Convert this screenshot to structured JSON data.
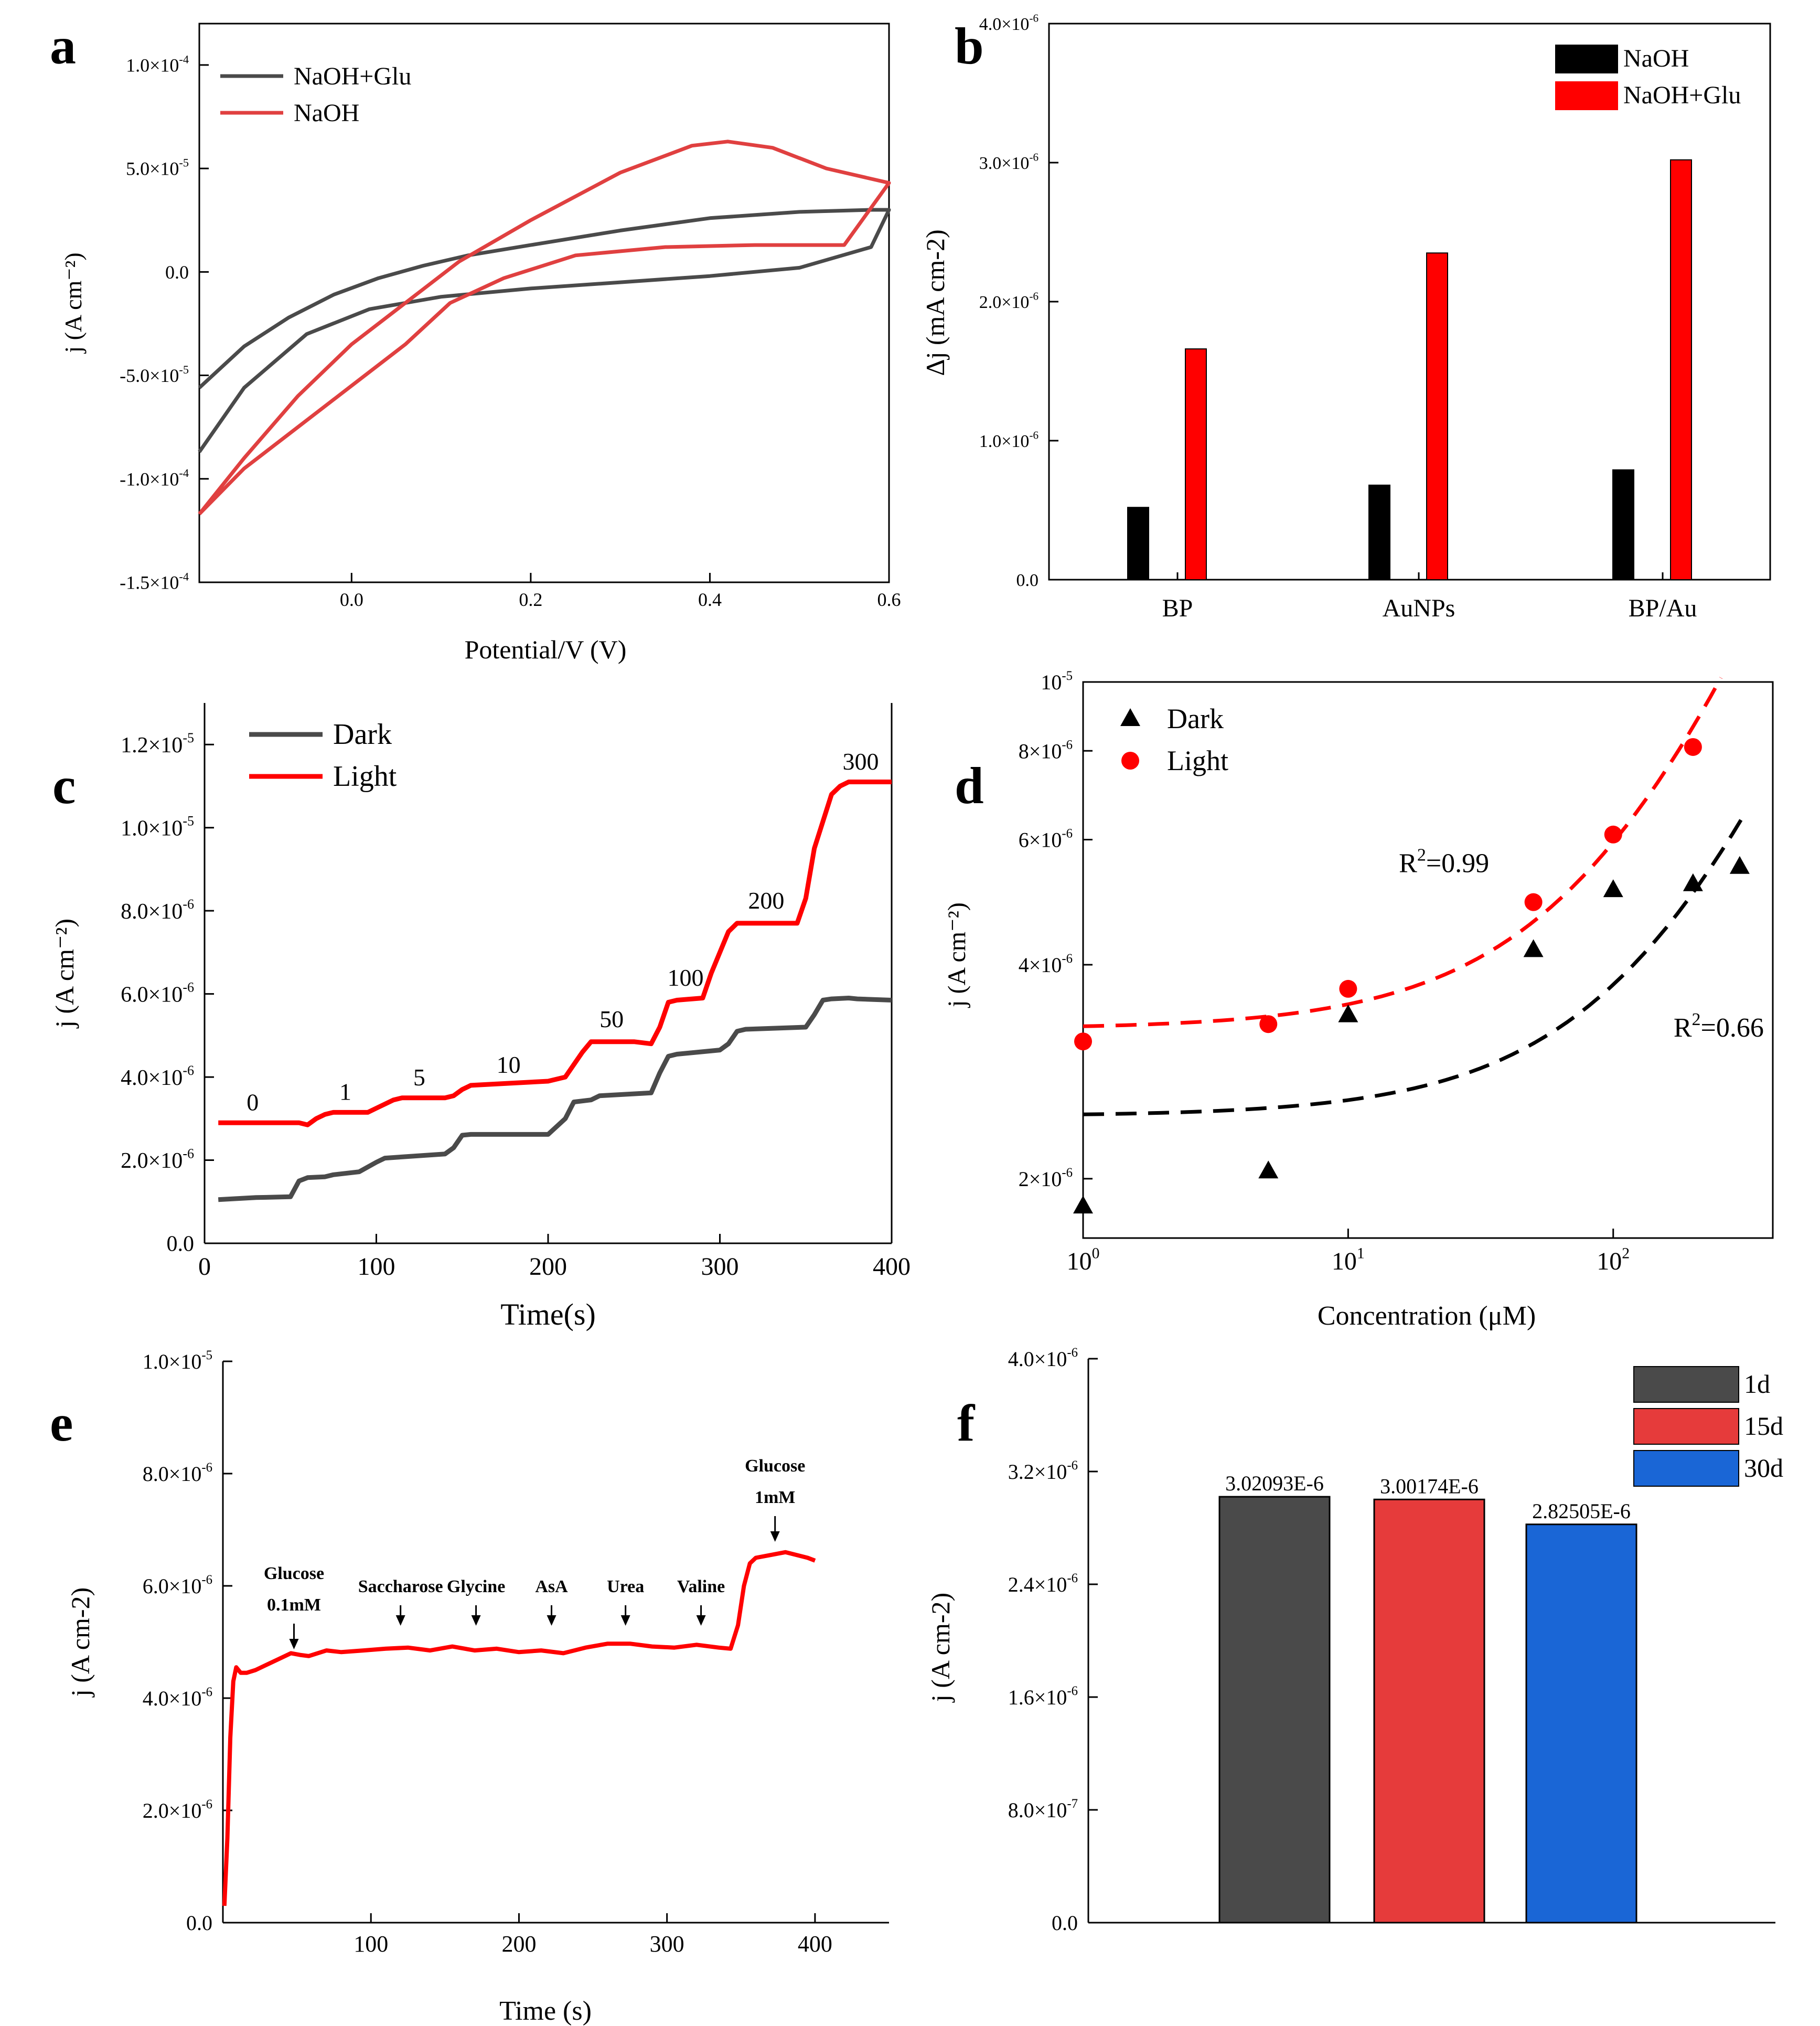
{
  "colors": {
    "black": "#000000",
    "gray": "#4a4a4a",
    "red": "#ff0000",
    "red_bar": "#e63b3b",
    "blue_bar": "#1a66d6"
  },
  "panels": {
    "a": "a",
    "b": "b",
    "c": "c",
    "d": "d",
    "e": "e",
    "f": "f"
  },
  "chart_data": [
    {
      "id": "a",
      "type": "line",
      "xlabel": "Potential/V (V)",
      "ylabel": "j (A cm⁻²)",
      "xlim": [
        -0.17,
        0.6
      ],
      "ylim": [
        -0.00015,
        0.00012
      ],
      "xticks": [
        0.0,
        0.2,
        0.4,
        0.6
      ],
      "xtick_labels": [
        "0.0",
        "0.2",
        "0.4",
        "0.6"
      ],
      "yticks": [
        0.0001,
        5e-05,
        0.0,
        -5e-05,
        -0.0001,
        -0.00015
      ],
      "ytick_labels": [
        [
          "1.0×10",
          "-4"
        ],
        [
          "5.0×10",
          "-5"
        ],
        [
          "0.0",
          ""
        ],
        [
          "-5.0×10",
          "-5"
        ],
        [
          "-1.0×10",
          "-4"
        ],
        [
          "-1.5×10",
          "-4"
        ]
      ],
      "legend_position": "top-left",
      "series": [
        {
          "name": "NaOH+Glu",
          "color": "#4a4a4a",
          "x": [
            -0.17,
            -0.12,
            -0.07,
            -0.02,
            0.03,
            0.08,
            0.13,
            0.2,
            0.3,
            0.4,
            0.5,
            0.58,
            0.6,
            0.58,
            0.5,
            0.4,
            0.3,
            0.2,
            0.1,
            0.02,
            -0.05,
            -0.12,
            -0.17
          ],
          "y": [
            -5.6e-05,
            -3.6e-05,
            -2.2e-05,
            -1.1e-05,
            -3e-06,
            3e-06,
            8e-06,
            1.3e-05,
            2e-05,
            2.6e-05,
            2.9e-05,
            3e-05,
            3e-05,
            1.2e-05,
            2e-06,
            -2e-06,
            -5e-06,
            -8e-06,
            -1.2e-05,
            -1.8e-05,
            -3e-05,
            -5.6e-05,
            -8.7e-05
          ]
        },
        {
          "name": "NaOH",
          "color": "#e04040",
          "x": [
            -0.17,
            -0.12,
            -0.06,
            0.0,
            0.06,
            0.12,
            0.2,
            0.3,
            0.38,
            0.42,
            0.47,
            0.53,
            0.6,
            0.55,
            0.45,
            0.35,
            0.25,
            0.17,
            0.11,
            0.06,
            0.0,
            -0.06,
            -0.12,
            -0.17
          ],
          "y": [
            -0.000117,
            -9e-05,
            -6e-05,
            -3.5e-05,
            -1.5e-05,
            5e-06,
            2.5e-05,
            4.8e-05,
            6.1e-05,
            6.3e-05,
            6e-05,
            5e-05,
            4.3e-05,
            1.3e-05,
            1.3e-05,
            1.2e-05,
            8e-06,
            -3e-06,
            -1.5e-05,
            -3.5e-05,
            -5.5e-05,
            -7.5e-05,
            -9.5e-05,
            -0.000117
          ]
        }
      ]
    },
    {
      "id": "b",
      "type": "bar",
      "ylabel": "Δj (mA cm-2)",
      "ylim": [
        0,
        4e-06
      ],
      "categories": [
        "BP",
        "AuNPs",
        "BP/Au"
      ],
      "yticks": [
        0,
        1e-06,
        2e-06,
        3e-06,
        4e-06
      ],
      "ytick_labels": [
        [
          "0.0",
          ""
        ],
        [
          "1.0×10",
          "-6"
        ],
        [
          "2.0×10",
          "-6"
        ],
        [
          "3.0×10",
          "-6"
        ],
        [
          "4.0×10",
          "-6"
        ]
      ],
      "legend_position": "top-right",
      "series": [
        {
          "name": "NaOH",
          "color": "#000000",
          "values": [
            5.2e-07,
            6.8e-07,
            7.9e-07
          ]
        },
        {
          "name": "NaOH+Glu",
          "color": "#ff0000",
          "values": [
            1.66e-06,
            2.35e-06,
            3.02e-06
          ]
        }
      ]
    },
    {
      "id": "c",
      "type": "line",
      "xlabel": "Time(s)",
      "ylabel": "j (A cm⁻²)",
      "xlim": [
        0,
        400
      ],
      "ylim": [
        0,
        1.3e-05
      ],
      "xticks": [
        0,
        100,
        200,
        300,
        400
      ],
      "xtick_labels": [
        "0",
        "100",
        "200",
        "300",
        "400"
      ],
      "yticks": [
        0,
        2e-06,
        4e-06,
        6e-06,
        8e-06,
        1e-05,
        1.2e-05
      ],
      "ytick_labels": [
        [
          "0.0",
          ""
        ],
        [
          "2.0×10",
          "-6"
        ],
        [
          "4.0×10",
          "-6"
        ],
        [
          "6.0×10",
          "-6"
        ],
        [
          "8.0×10",
          "-6"
        ],
        [
          "1.0×10",
          "-5"
        ],
        [
          "1.2×10",
          "-5"
        ]
      ],
      "legend_position": "top-left",
      "series": [
        {
          "name": "Dark",
          "color": "#4a4a4a",
          "x": [
            8,
            30,
            50,
            55,
            60,
            70,
            75,
            90,
            100,
            105,
            140,
            145,
            150,
            155,
            200,
            210,
            215,
            225,
            230,
            260,
            265,
            270,
            275,
            300,
            305,
            310,
            315,
            350,
            355,
            360,
            365,
            375,
            380,
            400
          ],
          "y": [
            1.05e-06,
            1.1e-06,
            1.12e-06,
            1.5e-06,
            1.58e-06,
            1.6e-06,
            1.65e-06,
            1.72e-06,
            1.95e-06,
            2.05e-06,
            2.15e-06,
            2.3e-06,
            2.6e-06,
            2.62e-06,
            2.62e-06,
            3e-06,
            3.4e-06,
            3.45e-06,
            3.55e-06,
            3.62e-06,
            4.1e-06,
            4.5e-06,
            4.55e-06,
            4.65e-06,
            4.8e-06,
            5.1e-06,
            5.15e-06,
            5.2e-06,
            5.5e-06,
            5.85e-06,
            5.88e-06,
            5.9e-06,
            5.88e-06,
            5.85e-06
          ]
        },
        {
          "name": "Light",
          "color": "#ff0000",
          "x": [
            8,
            30,
            55,
            60,
            65,
            70,
            75,
            95,
            100,
            110,
            115,
            140,
            145,
            150,
            155,
            200,
            210,
            215,
            220,
            225,
            250,
            260,
            265,
            270,
            275,
            290,
            295,
            305,
            310,
            315,
            345,
            350,
            355,
            365,
            370,
            375,
            400
          ],
          "y": [
            2.9e-06,
            2.9e-06,
            2.9e-06,
            2.85e-06,
            3e-06,
            3.1e-06,
            3.15e-06,
            3.15e-06,
            3.25e-06,
            3.45e-06,
            3.5e-06,
            3.5e-06,
            3.55e-06,
            3.7e-06,
            3.8e-06,
            3.9e-06,
            4e-06,
            4.3e-06,
            4.6e-06,
            4.85e-06,
            4.85e-06,
            4.8e-06,
            5.2e-06,
            5.8e-06,
            5.85e-06,
            5.9e-06,
            6.5e-06,
            7.5e-06,
            7.7e-06,
            7.7e-06,
            7.7e-06,
            8.3e-06,
            9.5e-06,
            1.08e-05,
            1.1e-05,
            1.11e-05,
            1.11e-05
          ]
        }
      ],
      "annotations": [
        {
          "text": "0",
          "x": 28,
          "y": 3.2e-06
        },
        {
          "text": "1",
          "x": 82,
          "y": 3.45e-06
        },
        {
          "text": "5",
          "x": 125,
          "y": 3.8e-06
        },
        {
          "text": "10",
          "x": 177,
          "y": 4.1e-06
        },
        {
          "text": "50",
          "x": 237,
          "y": 5.2e-06
        },
        {
          "text": "100",
          "x": 280,
          "y": 6.2e-06
        },
        {
          "text": "200",
          "x": 327,
          "y": 8.05e-06
        },
        {
          "text": "300",
          "x": 382,
          "y": 1.14e-05
        }
      ]
    },
    {
      "id": "d",
      "type": "scatter",
      "xlabel": "Concentration (μM)",
      "ylabel": "j (A cm⁻²)",
      "xscale": "log",
      "yscale": "log",
      "xlim": [
        1,
        400
      ],
      "ylim": [
        1.65e-06,
        1e-05
      ],
      "xticks": [
        1,
        10,
        100
      ],
      "xtick_labels": [
        [
          "10",
          "0"
        ],
        [
          "10",
          "1"
        ],
        [
          "10",
          "2"
        ]
      ],
      "yticks": [
        2e-06,
        4e-06,
        6e-06,
        8e-06,
        1e-05
      ],
      "ytick_labels": [
        [
          "2×10",
          "-6"
        ],
        [
          "4×10",
          "-6"
        ],
        [
          "6×10",
          "-6"
        ],
        [
          "8×10",
          "-6"
        ],
        [
          "10",
          "-5"
        ]
      ],
      "legend_position": "top-left",
      "series": [
        {
          "name": "Dark",
          "color": "#000000",
          "marker": "triangle",
          "x": [
            1,
            5,
            10,
            50,
            100,
            200,
            300
          ],
          "y": [
            1.83e-06,
            2.05e-06,
            3.4e-06,
            4.2e-06,
            5.1e-06,
            5.2e-06,
            5.5e-06
          ]
        },
        {
          "name": "Light",
          "color": "#ff0000",
          "marker": "circle",
          "x": [
            1,
            5,
            10,
            50,
            100,
            200
          ],
          "y": [
            3.12e-06,
            3.3e-06,
            3.7e-06,
            4.9e-06,
            6.1e-06,
            8.1e-06
          ]
        }
      ],
      "fits": [
        {
          "color": "#000000",
          "a": 2.45e-06,
          "b": 1.3e-08,
          "x_range": [
            1,
            310
          ]
        },
        {
          "color": "#ff0000",
          "a": 3.25e-06,
          "b": 2.7e-08,
          "x_range": [
            1,
            255
          ]
        }
      ],
      "annotations": [
        {
          "text": "R",
          "sup": "2",
          "rest": "=0.99",
          "x": 23,
          "y": 5.4e-06
        },
        {
          "text": "R",
          "sup": "2",
          "rest": "=0.66",
          "x": 250,
          "y": 3.17e-06
        }
      ]
    },
    {
      "id": "e",
      "type": "line",
      "xlabel": "Time (s)",
      "ylabel": "j (A cm-2)",
      "xlim": [
        0,
        450
      ],
      "ylim": [
        0,
        1e-05
      ],
      "xticks": [
        100,
        200,
        300,
        400
      ],
      "xtick_labels": [
        "100",
        "200",
        "300",
        "400"
      ],
      "yticks": [
        0,
        2e-06,
        4e-06,
        6e-06,
        8e-06,
        1e-05
      ],
      "ytick_labels": [
        [
          "0.0",
          ""
        ],
        [
          "2.0×10",
          "-6"
        ],
        [
          "4.0×10",
          "-6"
        ],
        [
          "6.0×10",
          "-6"
        ],
        [
          "8.0×10",
          "-6"
        ],
        [
          "1.0×10",
          "-5"
        ]
      ],
      "series": [
        {
          "name": "",
          "color": "#ff0000",
          "x": [
            1,
            3,
            5,
            7,
            9,
            12,
            16,
            22,
            30,
            38,
            46,
            52,
            58,
            70,
            80,
            95,
            110,
            125,
            140,
            155,
            170,
            185,
            200,
            215,
            230,
            245,
            260,
            275,
            290,
            305,
            320,
            335,
            343,
            348,
            352,
            356,
            360,
            370,
            380,
            395,
            400
          ],
          "y": [
            3e-07,
            1.5e-06,
            3.3e-06,
            4.3e-06,
            4.55e-06,
            4.45e-06,
            4.45e-06,
            4.5e-06,
            4.6e-06,
            4.7e-06,
            4.8e-06,
            4.77e-06,
            4.75e-06,
            4.85e-06,
            4.82e-06,
            4.85e-06,
            4.88e-06,
            4.9e-06,
            4.85e-06,
            4.92e-06,
            4.85e-06,
            4.88e-06,
            4.82e-06,
            4.85e-06,
            4.8e-06,
            4.9e-06,
            4.97e-06,
            4.97e-06,
            4.92e-06,
            4.9e-06,
            4.95e-06,
            4.9e-06,
            4.88e-06,
            5.3e-06,
            6e-06,
            6.4e-06,
            6.5e-06,
            6.55e-06,
            6.6e-06,
            6.5e-06,
            6.45e-06
          ]
        }
      ],
      "annotations": [
        {
          "lines": [
            "Glucose",
            "0.1mM"
          ],
          "x": 48
        },
        {
          "lines": [
            "Saccharose"
          ],
          "x": 120
        },
        {
          "lines": [
            "Glycine"
          ],
          "x": 171
        },
        {
          "lines": [
            "AsA"
          ],
          "x": 222
        },
        {
          "lines": [
            "Urea"
          ],
          "x": 272
        },
        {
          "lines": [
            "Valine"
          ],
          "x": 323
        },
        {
          "lines": [
            "Glucose",
            "1mM"
          ],
          "x": 373
        }
      ]
    },
    {
      "id": "f",
      "type": "bar",
      "ylabel": "j (A cm-2)",
      "ylim": [
        0,
        4e-06
      ],
      "categories": [
        "1d",
        "15d",
        "30d"
      ],
      "values": [
        3.02093e-06,
        3.00174e-06,
        2.82505e-06
      ],
      "value_labels": [
        "3.02093E-6",
        "3.00174E-6",
        "2.82505E-6"
      ],
      "colors": [
        "#4a4a4a",
        "#e63b3b",
        "#1a66d6"
      ],
      "yticks": [
        0,
        8e-07,
        1.6e-06,
        2.4e-06,
        3.2e-06,
        4e-06
      ],
      "ytick_labels": [
        [
          "0.0",
          ""
        ],
        [
          "8.0×10",
          "-7"
        ],
        [
          "1.6×10",
          "-6"
        ],
        [
          "2.4×10",
          "-6"
        ],
        [
          "3.2×10",
          "-6"
        ],
        [
          "4.0×10",
          "-6"
        ]
      ],
      "legend_position": "top-right"
    }
  ]
}
